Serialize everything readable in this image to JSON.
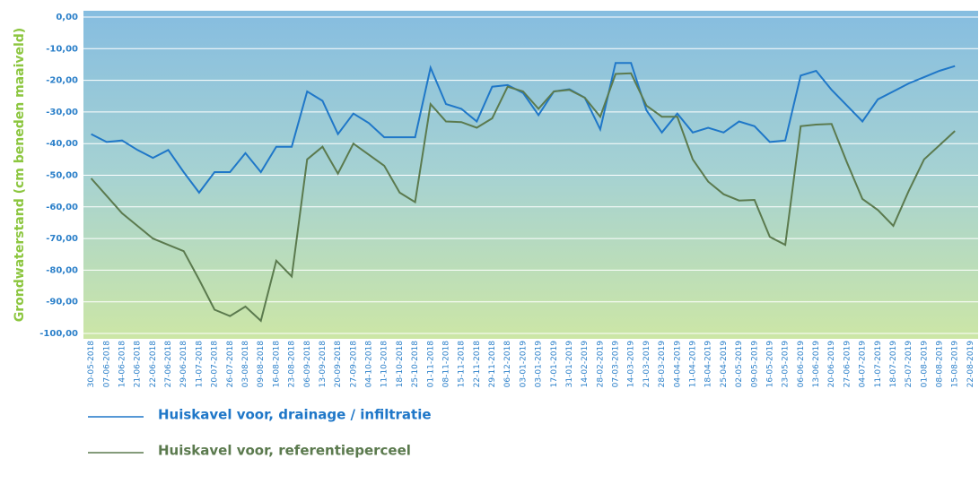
{
  "chart_data": {
    "type": "line",
    "y_label": "Grondwaterstand (cm beneden maaiveld)",
    "categories": [
      "30-05-2018",
      "07-06-2018",
      "14-06-2018",
      "21-06-2018",
      "22-06-2018",
      "27-06-2018",
      "29-06-2018",
      "11-07-2018",
      "20-07-2018",
      "26-07-2018",
      "03-08-2018",
      "09-08-2018",
      "16-08-2018",
      "23-08-2018",
      "06-09-2018",
      "13-09-2018",
      "20-09-2018",
      "27-09-2018",
      "04-10-2018",
      "11-10-2018",
      "18-10-2018",
      "25-10-2018",
      "01-11-2018",
      "08-11-2018",
      "15-11-2018",
      "22-11-2018",
      "29-11-2018",
      "06-12-2018",
      "03-01-2019",
      "03-01-2019",
      "17-01-2019",
      "31-01-2019",
      "14-02-2019",
      "28-02-2019",
      "07-03-2019",
      "14-03-2019",
      "21-03-2019",
      "28-03-2019",
      "04-04-2019",
      "11-04-2019",
      "18-04-2019",
      "25-04-2019",
      "02-05-2019",
      "09-05-2019",
      "16-05-2019",
      "23-05-2019",
      "06-06-2019",
      "13-06-2019",
      "20-06-2019",
      "27-06-2019",
      "04-07-2019",
      "11-07-2019",
      "18-07-2019",
      "25-07-2019",
      "01-08-2019",
      "08-08-2019",
      "15-08-2019",
      "22-08-2019"
    ],
    "series": [
      {
        "name": "Huiskavel voor, drainage / infiltratie",
        "color": "#1f77c8",
        "values": [
          -37,
          -39.5,
          -39,
          -42,
          -44.5,
          -42,
          -49,
          -55.5,
          -49,
          -49,
          -43,
          -49,
          -41,
          -41,
          -23.5,
          -26.5,
          -37,
          -30.5,
          -33.5,
          -38,
          -38,
          -38,
          -16,
          -27.5,
          -29,
          -33,
          -22,
          -21.5,
          -24,
          -31,
          -23.5,
          -22.8,
          -25.5,
          -35.5,
          -14.5,
          -14.5,
          -29.5,
          -36.5,
          -30.5,
          -36.5,
          -35,
          -36.5,
          -33,
          -34.5,
          -39.5,
          -39,
          -18.5,
          -17,
          -23,
          -28,
          -33,
          -26,
          -23.5,
          -21,
          -19,
          -17,
          -15.5,
          null
        ]
      },
      {
        "name": "Huiskavel voor, referentieperceel",
        "color": "#5b7a4e",
        "values": [
          -51,
          -56.5,
          -62,
          -66,
          -70,
          -72,
          -74,
          -83,
          -92.5,
          -94.5,
          -91.5,
          -96,
          -77,
          -82,
          -45,
          -41,
          -49.5,
          -40,
          -43.5,
          -47,
          -55.5,
          -58.5,
          -27.5,
          -33,
          -33.2,
          -35,
          -32,
          -22,
          -23.5,
          -29,
          -23.5,
          -23,
          -25.5,
          -31.5,
          -18,
          -17.8,
          -28,
          -31.5,
          -31.5,
          -45,
          -52,
          -56,
          -58,
          -57.8,
          -69.5,
          -72,
          -34.5,
          -34,
          -33.8,
          -46,
          -57.5,
          -61,
          -66,
          -55,
          -45,
          -40.5,
          -36,
          null
        ]
      }
    ],
    "ylim": [
      -100,
      0
    ],
    "yticks": [
      {
        "value": 0,
        "label": "0,00"
      },
      {
        "value": -10,
        "label": "-10,00"
      },
      {
        "value": -20,
        "label": "-20,00"
      },
      {
        "value": -30,
        "label": "-30,00"
      },
      {
        "value": -40,
        "label": "-40,00"
      },
      {
        "value": -50,
        "label": "-50,00"
      },
      {
        "value": -60,
        "label": "-60,00"
      },
      {
        "value": -70,
        "label": "-70,00"
      },
      {
        "value": -80,
        "label": "-80,00"
      },
      {
        "value": -90,
        "label": "-90,00"
      },
      {
        "value": -100,
        "label": "-100,00"
      }
    ],
    "grid": true
  }
}
